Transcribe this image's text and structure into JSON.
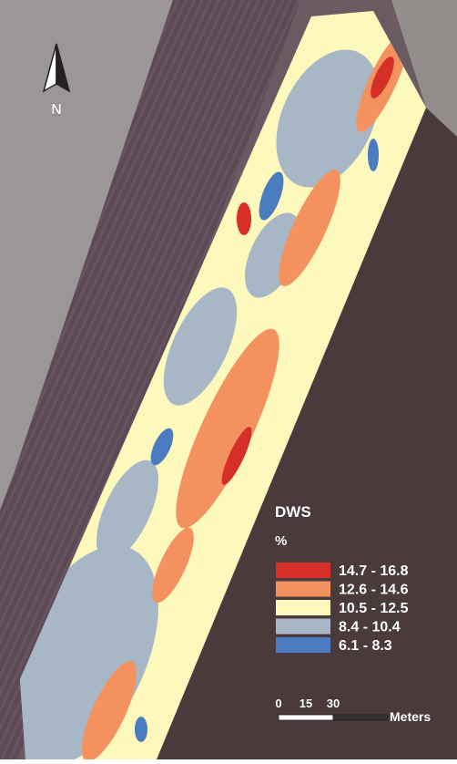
{
  "north_label": "N",
  "legend": {
    "title": "DWS",
    "unit": "%",
    "items": [
      {
        "label": "14.7 - 16.8",
        "color": "#d62f27"
      },
      {
        "label": "12.6 - 14.6",
        "color": "#f3925f"
      },
      {
        "label": "10.5 - 12.5",
        "color": "#fdf9bd"
      },
      {
        "label": "8.4 - 10.4",
        "color": "#a8b7c6"
      },
      {
        "label": "6.1 - 8.3",
        "color": "#4a7cbf"
      }
    ]
  },
  "scale_bar": {
    "ticks": [
      "0",
      "15",
      "30"
    ],
    "unit": "Meters"
  }
}
